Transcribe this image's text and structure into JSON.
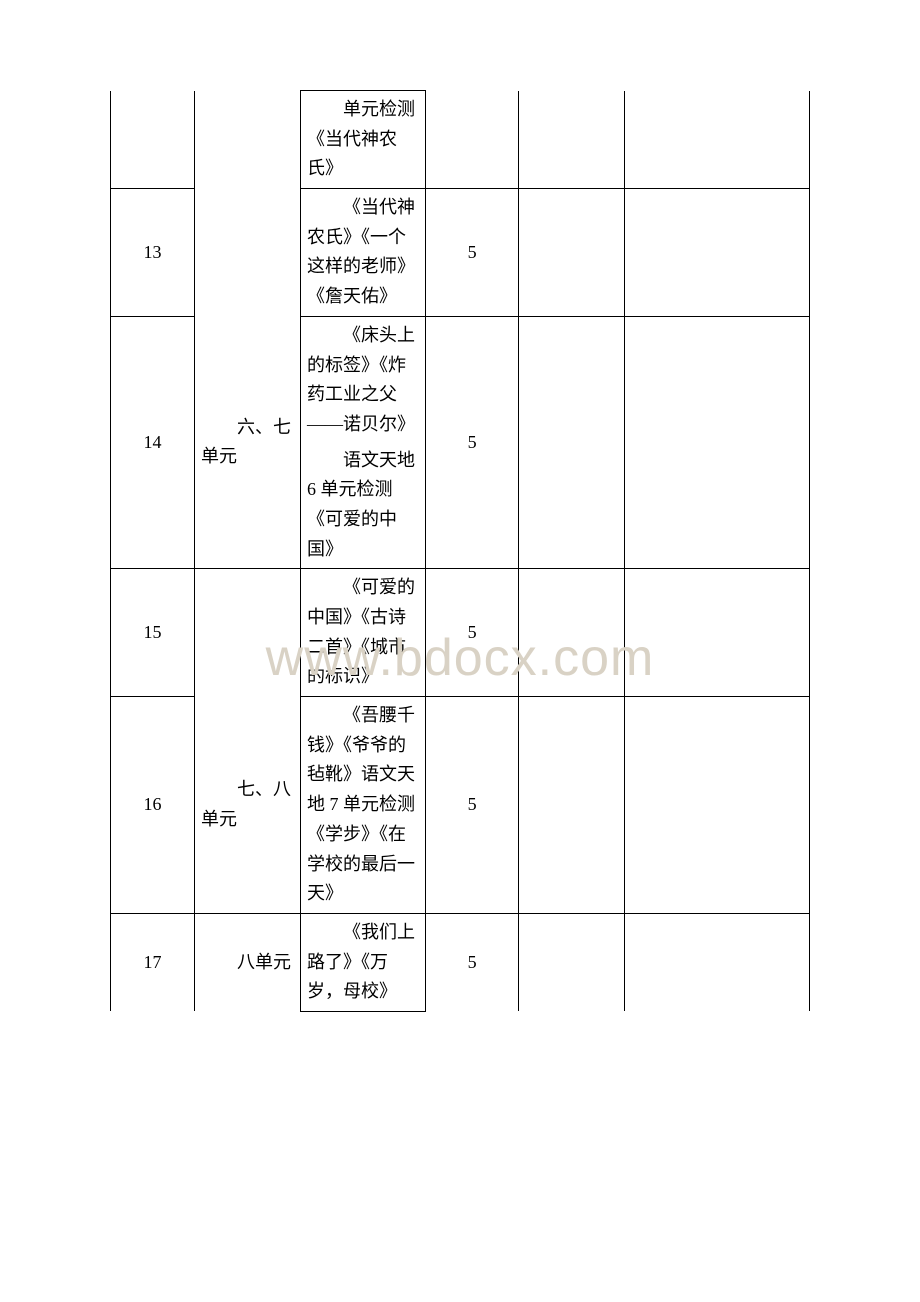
{
  "watermark": "www.bdocx.com",
  "rows": [
    {
      "week": "",
      "unit": "",
      "content_paras": [
        "单元检测《当代神农氏》"
      ],
      "hours": "",
      "weekNoTop": true,
      "unitNoTop": true,
      "unitNoBottom": true,
      "hoursNoTop": true,
      "e1NoTop": true,
      "e2NoTop": true
    },
    {
      "week": "13",
      "unit": "",
      "content_paras": [
        "《当代神农氏》《一个这样的老师》《詹天佑》"
      ],
      "hours": "5",
      "unitNoTop": true,
      "unitNoBottom": true
    },
    {
      "week": "14",
      "unit": "六、七单元",
      "content_paras": [
        "《床头上的标签》《炸药工业之父——诺贝尔》",
        "语文天地 6 单元检测 《可爱的中国》"
      ],
      "hours": "5",
      "unitNoTop": true
    },
    {
      "week": "15",
      "unit": "",
      "content_paras": [
        "《可爱的中国》《古诗二首》《城市的标识》"
      ],
      "hours": "5",
      "unitNoBottom": true
    },
    {
      "week": "16",
      "unit": "七、八单元",
      "content_paras": [
        "《吾腰千钱》《爷爷的毡靴》语文天地 7 单元检测 《学步》《在学校的最后一天》"
      ],
      "hours": "5",
      "unitNoTop": true
    },
    {
      "week": "17",
      "unit": "八单元",
      "content_paras": [
        "《我们上路了》《万岁，母校》"
      ],
      "hours": "5",
      "weekNoBottom": true,
      "unitNoBottom": true,
      "hoursNoBottom": true,
      "e1NoBottom": true,
      "e2NoBottom": true
    }
  ]
}
